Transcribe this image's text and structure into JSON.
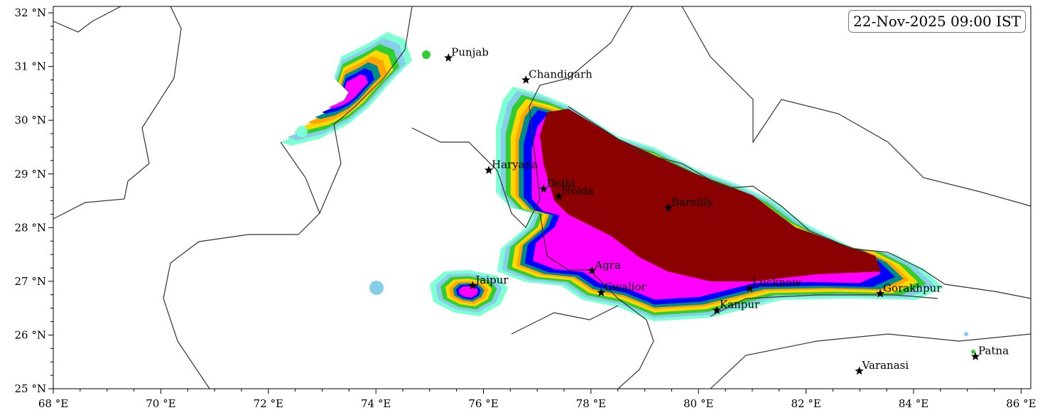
{
  "map": {
    "timestamp": "22-Nov-2025 09:00 IST",
    "extent": {
      "lon": [
        68,
        86.18
      ],
      "lat": [
        25,
        32.12
      ]
    },
    "x_ticks": [
      {
        "value": 68,
        "label": "68 °E"
      },
      {
        "value": 70,
        "label": "70 °E"
      },
      {
        "value": 72,
        "label": "72 °E"
      },
      {
        "value": 74,
        "label": "74 °E"
      },
      {
        "value": 76,
        "label": "76 °E"
      },
      {
        "value": 78,
        "label": "78 °E"
      },
      {
        "value": 80,
        "label": "80 °E"
      },
      {
        "value": 82,
        "label": "82 °E"
      },
      {
        "value": 84,
        "label": "84 °E"
      },
      {
        "value": 86,
        "label": "86 °E"
      }
    ],
    "y_ticks": [
      {
        "value": 25,
        "label": "25 °N"
      },
      {
        "value": 26,
        "label": "26 °N"
      },
      {
        "value": 27,
        "label": "27 °N"
      },
      {
        "value": 28,
        "label": "28 °N"
      },
      {
        "value": 29,
        "label": "29 °N"
      },
      {
        "value": 30,
        "label": "30 °N"
      },
      {
        "value": 31,
        "label": "31 °N"
      },
      {
        "value": 32,
        "label": "32 °N"
      }
    ],
    "cities": [
      {
        "name": "Punjab",
        "lon": 75.35,
        "lat": 31.16
      },
      {
        "name": "Chandigarh",
        "lon": 76.79,
        "lat": 30.75
      },
      {
        "name": "Haryana",
        "lon": 76.1,
        "lat": 29.07
      },
      {
        "name": "Delhi",
        "lon": 77.12,
        "lat": 28.72
      },
      {
        "name": "Noida",
        "lon": 77.4,
        "lat": 28.58
      },
      {
        "name": "Bareilly",
        "lon": 79.44,
        "lat": 28.37
      },
      {
        "name": "Agra",
        "lon": 78.02,
        "lat": 27.2
      },
      {
        "name": "Jaipur",
        "lon": 75.8,
        "lat": 26.92
      },
      {
        "name": "Gwalior",
        "lon": 78.19,
        "lat": 26.79
      },
      {
        "name": "Lucknow",
        "lon": 80.95,
        "lat": 26.87
      },
      {
        "name": "Kanpur",
        "lon": 80.34,
        "lat": 26.46
      },
      {
        "name": "Gorakhpur",
        "lon": 83.38,
        "lat": 26.77
      },
      {
        "name": "Varanasi",
        "lon": 82.99,
        "lat": 25.33
      },
      {
        "name": "Patna",
        "lon": 85.15,
        "lat": 25.6
      }
    ],
    "level_colors": [
      "#7fffd4",
      "#87ceeb",
      "#32cd32",
      "#ffd700",
      "#ffa500",
      "#008b8b",
      "#0000ff",
      "#ff00ff",
      "#8b0000"
    ],
    "border_color": "#333333"
  }
}
